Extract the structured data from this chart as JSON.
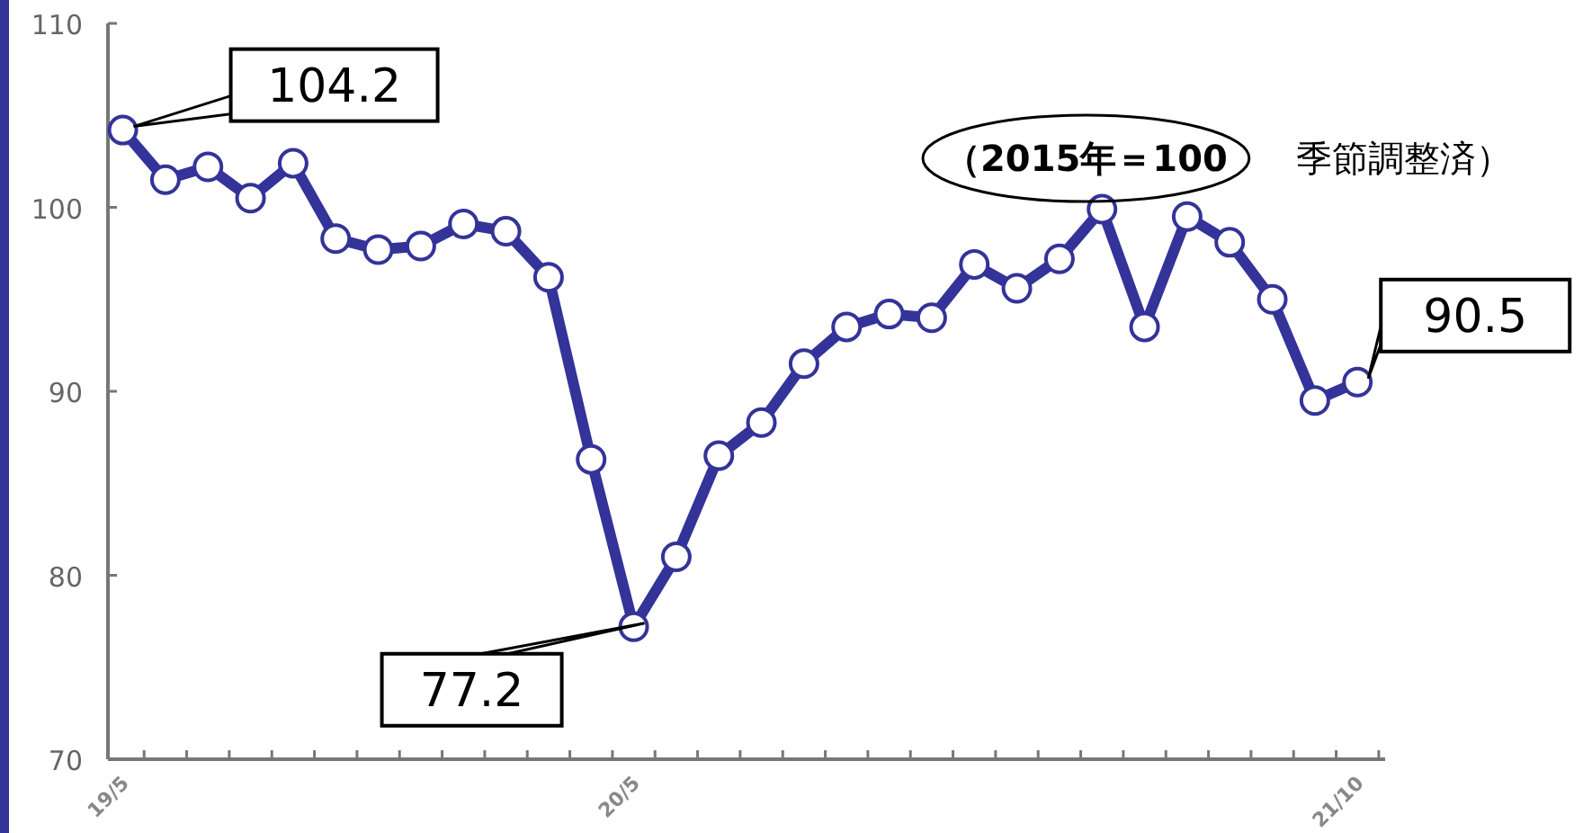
{
  "chart_data": {
    "type": "line",
    "categories": [
      "19/5",
      null,
      null,
      null,
      null,
      null,
      null,
      null,
      null,
      null,
      null,
      null,
      "20/5",
      null,
      null,
      null,
      null,
      null,
      null,
      null,
      null,
      null,
      null,
      null,
      null,
      null,
      null,
      null,
      null,
      "21/10"
    ],
    "series": [
      {
        "color": "#333399",
        "values": [
          104.2,
          101.5,
          102.2,
          100.5,
          102.4,
          98.3,
          97.7,
          97.9,
          99.1,
          98.7,
          96.2,
          86.3,
          77.2,
          81.0,
          86.5,
          88.3,
          91.5,
          93.5,
          94.2,
          94.0,
          96.9,
          95.6,
          97.2,
          99.9,
          93.5,
          99.5,
          98.1,
          95.0,
          89.5,
          90.5
        ]
      }
    ],
    "ylim": [
      70,
      110
    ],
    "yticks": [
      70,
      80,
      90,
      100,
      110
    ],
    "marker": "circle",
    "line_style": "solid",
    "annotations": [
      {
        "text": "104.2",
        "x": "19/5",
        "y": 104.2
      },
      {
        "text": "77.2",
        "x": "20/5",
        "y": 77.2
      },
      {
        "text": "90.5",
        "x": "21/10",
        "y": 90.5
      },
      "**（2015年＝100**　季節調整済）"
    ]
  }
}
